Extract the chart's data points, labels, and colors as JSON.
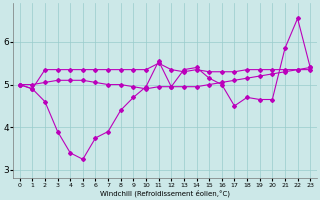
{
  "xlabel": "Windchill (Refroidissement éolien,°C)",
  "x": [
    0,
    1,
    2,
    3,
    4,
    5,
    6,
    7,
    8,
    9,
    10,
    11,
    12,
    13,
    14,
    15,
    16,
    17,
    18,
    19,
    20,
    21,
    22,
    23
  ],
  "line1": [
    5.0,
    4.9,
    5.35,
    5.35,
    5.35,
    5.35,
    5.35,
    5.35,
    5.35,
    5.35,
    5.35,
    5.5,
    5.35,
    5.3,
    5.35,
    5.3,
    5.3,
    5.3,
    5.35,
    5.35,
    5.35,
    5.35,
    5.35,
    5.35
  ],
  "line2": [
    5.0,
    5.0,
    5.05,
    5.1,
    5.1,
    5.1,
    5.05,
    5.0,
    5.0,
    4.95,
    4.9,
    4.95,
    4.95,
    4.95,
    4.95,
    5.0,
    5.05,
    5.1,
    5.15,
    5.2,
    5.25,
    5.3,
    5.35,
    5.4
  ],
  "line3": [
    5.0,
    4.9,
    4.6,
    3.9,
    3.4,
    3.25,
    3.75,
    3.9,
    4.4,
    4.7,
    4.95,
    5.55,
    4.95,
    5.35,
    5.4,
    5.15,
    5.0,
    4.5,
    4.7,
    4.65,
    4.65,
    5.85,
    6.55,
    5.4
  ],
  "ylim": [
    2.8,
    6.9
  ],
  "xlim": [
    -0.5,
    23.5
  ],
  "yticks": [
    3,
    4,
    5,
    6
  ],
  "xticks": [
    0,
    1,
    2,
    3,
    4,
    5,
    6,
    7,
    8,
    9,
    10,
    11,
    12,
    13,
    14,
    15,
    16,
    17,
    18,
    19,
    20,
    21,
    22,
    23
  ],
  "line_color": "#bb00bb",
  "bg_color": "#cce8e8",
  "grid_color": "#99cccc",
  "marker": "D",
  "marker_size": 2.0,
  "line_width": 0.8
}
